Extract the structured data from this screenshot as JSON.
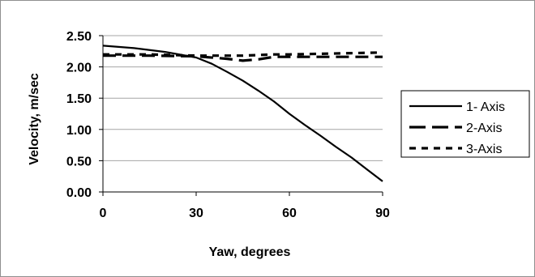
{
  "chart_data": {
    "type": "line",
    "xlabel": "Yaw, degrees",
    "ylabel": "Velocity, m/sec",
    "xlim": [
      0,
      90
    ],
    "ylim": [
      0,
      2.5
    ],
    "x_ticks": [
      "0",
      "30",
      "60",
      "90"
    ],
    "y_ticks": [
      "0.00",
      "0.50",
      "1.00",
      "1.50",
      "2.00",
      "2.50"
    ],
    "grid": "horizontal",
    "legend_position": "right",
    "series": [
      {
        "name": "1- Axis",
        "style": "solid",
        "color": "#000000",
        "points": [
          [
            0,
            2.34
          ],
          [
            10,
            2.3
          ],
          [
            20,
            2.24
          ],
          [
            30,
            2.15
          ],
          [
            35,
            2.05
          ],
          [
            40,
            1.92
          ],
          [
            45,
            1.78
          ],
          [
            50,
            1.62
          ],
          [
            55,
            1.45
          ],
          [
            60,
            1.25
          ],
          [
            65,
            1.07
          ],
          [
            70,
            0.9
          ],
          [
            75,
            0.72
          ],
          [
            80,
            0.55
          ],
          [
            85,
            0.36
          ],
          [
            90,
            0.17
          ]
        ]
      },
      {
        "name": "2-Axis",
        "style": "dashed",
        "color": "#000000",
        "points": [
          [
            0,
            2.18
          ],
          [
            15,
            2.18
          ],
          [
            30,
            2.17
          ],
          [
            40,
            2.13
          ],
          [
            45,
            2.1
          ],
          [
            50,
            2.12
          ],
          [
            55,
            2.16
          ],
          [
            60,
            2.16
          ],
          [
            70,
            2.16
          ],
          [
            80,
            2.16
          ],
          [
            90,
            2.16
          ]
        ]
      },
      {
        "name": "3-Axis",
        "style": "dotted",
        "color": "#000000",
        "points": [
          [
            0,
            2.2
          ],
          [
            15,
            2.2
          ],
          [
            30,
            2.18
          ],
          [
            45,
            2.18
          ],
          [
            55,
            2.2
          ],
          [
            60,
            2.2
          ],
          [
            70,
            2.21
          ],
          [
            80,
            2.22
          ],
          [
            90,
            2.23
          ]
        ]
      }
    ]
  }
}
